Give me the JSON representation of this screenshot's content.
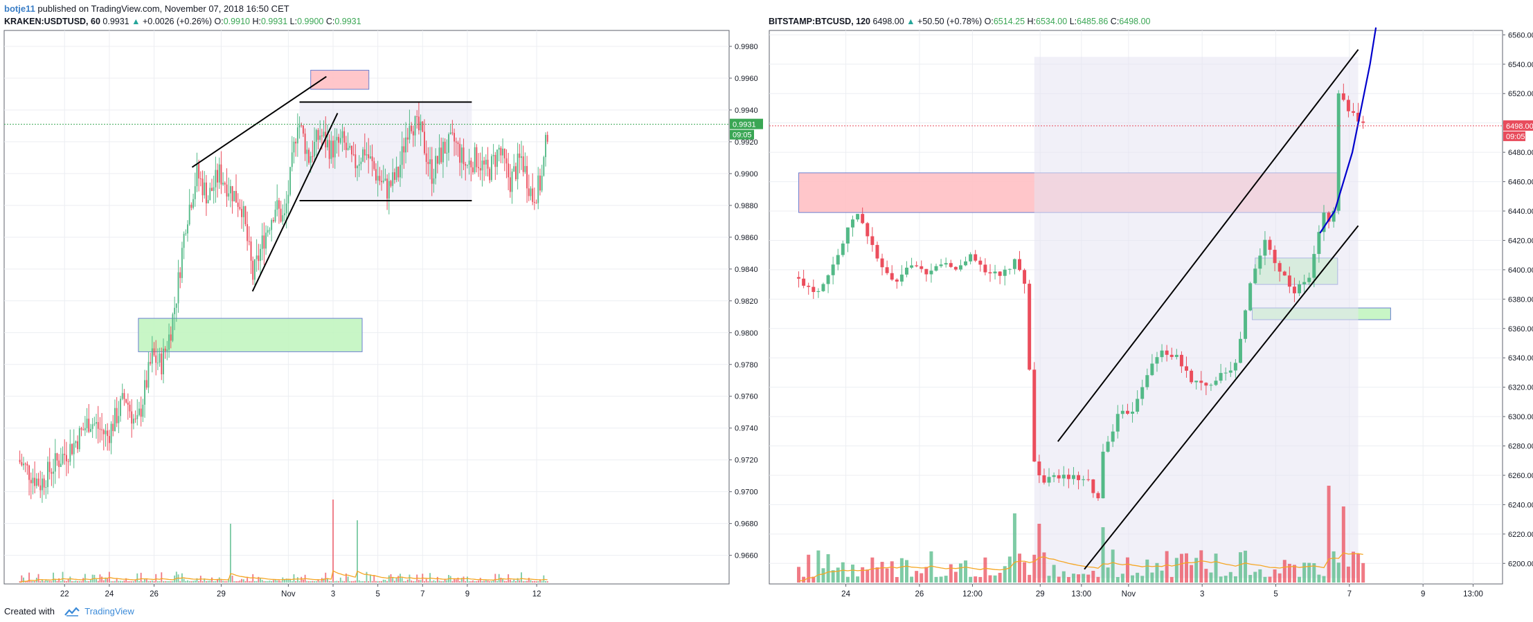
{
  "header": {
    "author": "botje11",
    "published_text": "published on TradingView.com, November 07, 2018 16:50 CET"
  },
  "footer": {
    "created_with": "Created with",
    "brand": "TradingView"
  },
  "colors": {
    "up": "#53b987",
    "down": "#eb4d5c",
    "resistance_zone": "#ffc0c4",
    "support_zone": "#c2f5c0",
    "range_box": "#e6e3f2",
    "trendline": "#000000",
    "projection": "#0000cc",
    "volume_ma": "#f5a623",
    "last_price_label": "#3aa654",
    "last_price_label_btc": "#e84c5c"
  },
  "chart_data": [
    {
      "type": "candlestick",
      "symbol": "KRAKEN:USDTUSD, 60",
      "legend": {
        "symbol": "KRAKEN:USDTUSD, 60",
        "last": "0.9931",
        "change": "+0.0026 (+0.26%)",
        "open": "0.9910",
        "high": "0.9931",
        "low": "0.9900",
        "close": "0.9931"
      },
      "last_price_label": "0.9931",
      "countdown_label": "09:05",
      "y_ticks": [
        "0.9980",
        "0.9960",
        "0.9940",
        "0.9920",
        "0.9900",
        "0.9880",
        "0.9860",
        "0.9840",
        "0.9820",
        "0.9800",
        "0.9780",
        "0.9760",
        "0.9740",
        "0.9720",
        "0.9700",
        "0.9680",
        "0.9660"
      ],
      "x_ticks": [
        "22",
        "24",
        "26",
        "29",
        "Nov",
        "3",
        "5",
        "7",
        "9",
        "12"
      ],
      "ylim": [
        0.9642,
        0.999
      ],
      "price_path": [
        [
          20.0,
          0.972
        ],
        [
          21.0,
          0.9705
        ],
        [
          21.5,
          0.9715
        ],
        [
          22.5,
          0.973
        ],
        [
          23.2,
          0.9745
        ],
        [
          24.0,
          0.9735
        ],
        [
          24.8,
          0.976
        ],
        [
          25.3,
          0.974
        ],
        [
          26.0,
          0.9785
        ],
        [
          26.4,
          0.978
        ],
        [
          26.8,
          0.98
        ],
        [
          27.1,
          0.9825
        ],
        [
          27.5,
          0.987
        ],
        [
          28.0,
          0.99
        ],
        [
          28.5,
          0.9885
        ],
        [
          29.0,
          0.99
        ],
        [
          29.5,
          0.989
        ],
        [
          30.0,
          0.988
        ],
        [
          30.5,
          0.9835
        ],
        [
          31.0,
          0.986
        ],
        [
          31.5,
          0.988
        ],
        [
          31.9,
          0.987
        ],
        [
          32.2,
          0.99
        ],
        [
          32.5,
          0.9935
        ],
        [
          33.0,
          0.991
        ],
        [
          33.5,
          0.9925
        ],
        [
          34.0,
          0.9915
        ],
        [
          34.5,
          0.992
        ],
        [
          35.0,
          0.9905
        ],
        [
          35.5,
          0.9915
        ],
        [
          36.0,
          0.99
        ],
        [
          36.5,
          0.989
        ],
        [
          37.0,
          0.99
        ],
        [
          37.5,
          0.9935
        ],
        [
          38.0,
          0.9925
        ],
        [
          38.5,
          0.99
        ],
        [
          39.0,
          0.9915
        ],
        [
          39.5,
          0.992
        ],
        [
          40.0,
          0.9905
        ],
        [
          40.5,
          0.991
        ],
        [
          41.0,
          0.99
        ],
        [
          41.5,
          0.9915
        ],
        [
          42.0,
          0.9895
        ],
        [
          42.5,
          0.991
        ],
        [
          43.0,
          0.9885
        ],
        [
          43.4,
          0.9895
        ],
        [
          43.7,
          0.9931
        ]
      ],
      "zones": [
        {
          "kind": "resistance",
          "x": [
            33.0,
            35.6
          ],
          "y": [
            0.9953,
            0.9965
          ]
        },
        {
          "kind": "support",
          "x": [
            25.3,
            35.3
          ],
          "y": [
            0.9788,
            0.9809
          ]
        },
        {
          "kind": "range",
          "x": [
            32.5,
            40.2
          ],
          "y": [
            0.9883,
            0.9945
          ]
        }
      ],
      "lines": [
        {
          "x": [
            27.7,
            33.7
          ],
          "y": [
            0.9904,
            0.9961
          ]
        },
        {
          "x": [
            30.4,
            34.2
          ],
          "y": [
            0.9826,
            0.9938
          ]
        },
        {
          "x": [
            32.5,
            40.2
          ],
          "y": [
            0.9945,
            0.9945
          ]
        },
        {
          "x": [
            32.5,
            40.2
          ],
          "y": [
            0.9883,
            0.9883
          ]
        }
      ]
    },
    {
      "type": "candlestick",
      "symbol": "BITSTAMP:BTCUSD, 120",
      "legend": {
        "symbol": "BITSTAMP:BTCUSD, 120",
        "last": "6498.00",
        "change": "+50.50 (+0.78%)",
        "open": "6514.25",
        "high": "6534.00",
        "low": "6485.86",
        "close": "6498.00"
      },
      "last_price_label": "6498.00",
      "countdown_label": "09:05",
      "y_ticks": [
        "6560.00",
        "6540.00",
        "6520.00",
        "6500.00",
        "6480.00",
        "6460.00",
        "6440.00",
        "6420.00",
        "6400.00",
        "6380.00",
        "6360.00",
        "6340.00",
        "6320.00",
        "6300.00",
        "6280.00",
        "6260.00",
        "6240.00",
        "6220.00",
        "6200.00"
      ],
      "x_ticks": [
        "24",
        "26",
        "12:00",
        "29",
        "13:00",
        "Nov",
        "3",
        "5",
        "7",
        "9",
        "13:00"
      ],
      "ylim": [
        6186,
        6563
      ],
      "price_path": [
        [
          22.0,
          6395
        ],
        [
          22.8,
          6385
        ],
        [
          23.5,
          6410
        ],
        [
          24.1,
          6440
        ],
        [
          24.6,
          6420
        ],
        [
          25.0,
          6400
        ],
        [
          25.5,
          6390
        ],
        [
          26.0,
          6405
        ],
        [
          26.5,
          6395
        ],
        [
          27.0,
          6405
        ],
        [
          27.5,
          6400
        ],
        [
          28.0,
          6410
        ],
        [
          28.5,
          6400
        ],
        [
          29.0,
          6395
        ],
        [
          29.5,
          6405
        ],
        [
          29.9,
          6390
        ],
        [
          30.1,
          6272
        ],
        [
          30.5,
          6255
        ],
        [
          31.0,
          6260
        ],
        [
          31.5,
          6258
        ],
        [
          32.0,
          6255
        ],
        [
          32.3,
          6240
        ],
        [
          32.5,
          6275
        ],
        [
          33.0,
          6300
        ],
        [
          33.5,
          6305
        ],
        [
          34.0,
          6330
        ],
        [
          34.5,
          6345
        ],
        [
          35.0,
          6340
        ],
        [
          35.5,
          6325
        ],
        [
          36.0,
          6320
        ],
        [
          36.5,
          6330
        ],
        [
          37.0,
          6335
        ],
        [
          37.5,
          6390
        ],
        [
          38.0,
          6420
        ],
        [
          38.5,
          6400
        ],
        [
          39.0,
          6385
        ],
        [
          39.5,
          6395
        ],
        [
          40.0,
          6440
        ],
        [
          40.3,
          6425
        ],
        [
          40.5,
          6520
        ],
        [
          40.8,
          6510
        ],
        [
          41.3,
          6498
        ]
      ],
      "zones": [
        {
          "kind": "resistance",
          "x": [
            22.0,
            40.3
          ],
          "y": [
            6439,
            6466
          ]
        },
        {
          "kind": "support",
          "x": [
            37.5,
            40.3
          ],
          "y": [
            6390,
            6408
          ]
        },
        {
          "kind": "support",
          "x": [
            37.4,
            42.1
          ],
          "y": [
            6366,
            6374
          ]
        },
        {
          "kind": "range",
          "x": [
            30.0,
            41.0
          ],
          "y": [
            6190,
            6545
          ]
        }
      ],
      "lines": [
        {
          "x": [
            30.8,
            41.0
          ],
          "y": [
            6283,
            6550
          ]
        },
        {
          "x": [
            31.7,
            41.0
          ],
          "y": [
            6196,
            6430
          ]
        }
      ],
      "projection": {
        "x": [
          39.7,
          40.2,
          40.8,
          41.4,
          41.6
        ],
        "y": [
          6425,
          6440,
          6480,
          6540,
          6565
        ]
      }
    }
  ]
}
